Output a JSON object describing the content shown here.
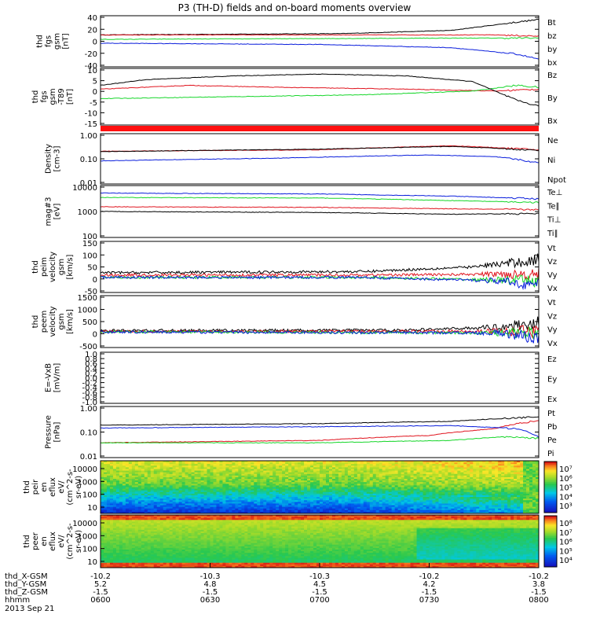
{
  "title": "P3 (TH-D) fields and on-board moments overview",
  "colors": {
    "black": "#000000",
    "red": "#e0141e",
    "green": "#16d62a",
    "blue": "#0a1edc"
  },
  "chart_data": [
    {
      "type": "line",
      "id": "fgs_gsm",
      "ylabel": [
        "thd",
        "fgs",
        "gsm",
        "[nT]"
      ],
      "ylim": [
        -40,
        40
      ],
      "yticks": [
        "40",
        "20",
        "0",
        "-20",
        "-40"
      ],
      "series": [
        {
          "name": "Bt",
          "color": "black",
          "shape": [
            [
              0,
              10
            ],
            [
              0.55,
              12
            ],
            [
              0.8,
              17
            ],
            [
              0.95,
              30
            ],
            [
              1,
              34
            ]
          ]
        },
        {
          "name": "bz",
          "color": "red",
          "shape": [
            [
              0,
              10
            ],
            [
              0.6,
              10
            ],
            [
              0.9,
              10
            ],
            [
              1,
              8
            ]
          ]
        },
        {
          "name": "by",
          "color": "green",
          "shape": [
            [
              0,
              3
            ],
            [
              0.4,
              4
            ],
            [
              0.8,
              5
            ],
            [
              1,
              5
            ]
          ]
        },
        {
          "name": "bx",
          "color": "blue",
          "shape": [
            [
              0,
              -3
            ],
            [
              0.5,
              -5
            ],
            [
              0.8,
              -10
            ],
            [
              0.95,
              -20
            ],
            [
              1,
              -28
            ]
          ]
        }
      ]
    },
    {
      "type": "line",
      "id": "fgs_gsm_t89",
      "ylabel": [
        "thd",
        "fgs",
        "gsm",
        "-T89",
        "[nT]"
      ],
      "ylim": [
        -18,
        12
      ],
      "yticks": [
        "10",
        "5",
        "0",
        "-5",
        "-10",
        "-15"
      ],
      "series": [
        {
          "name": "Bz",
          "color": "red",
          "shape": [
            [
              0,
              1
            ],
            [
              0.2,
              3
            ],
            [
              0.4,
              2
            ],
            [
              0.7,
              1
            ],
            [
              0.9,
              0
            ],
            [
              1,
              1
            ]
          ]
        },
        {
          "name": "By",
          "color": "green",
          "shape": [
            [
              0,
              -4
            ],
            [
              0.3,
              -3
            ],
            [
              0.6,
              -2
            ],
            [
              0.85,
              0
            ],
            [
              0.95,
              3
            ],
            [
              1,
              2
            ]
          ]
        },
        {
          "name": "Bx",
          "color": "black",
          "shape": [
            [
              0,
              3
            ],
            [
              0.1,
              6
            ],
            [
              0.3,
              8
            ],
            [
              0.5,
              9
            ],
            [
              0.7,
              8
            ],
            [
              0.85,
              5
            ],
            [
              0.95,
              -5
            ],
            [
              1,
              -8
            ]
          ]
        }
      ]
    },
    {
      "type": "line",
      "id": "density",
      "ylabel": [
        "Density",
        "[cm-3]"
      ],
      "log": true,
      "ylim": [
        0.01,
        1.5
      ],
      "yticks": [
        "1.00",
        "0.10",
        "0.01"
      ],
      "series": [
        {
          "name": "Ne",
          "color": "red",
          "shape": [
            [
              0,
              0.26
            ],
            [
              0.5,
              0.3
            ],
            [
              0.8,
              0.45
            ],
            [
              1,
              0.3
            ]
          ]
        },
        {
          "name": "Ni",
          "color": "black",
          "shape": [
            [
              0,
              0.25
            ],
            [
              0.5,
              0.32
            ],
            [
              0.8,
              0.42
            ],
            [
              1,
              0.28
            ]
          ]
        },
        {
          "name": "Npot",
          "color": "blue",
          "shape": [
            [
              0,
              0.1
            ],
            [
              0.4,
              0.13
            ],
            [
              0.75,
              0.18
            ],
            [
              0.9,
              0.15
            ],
            [
              1,
              0.08
            ]
          ]
        }
      ]
    },
    {
      "type": "line",
      "id": "temperature",
      "ylabel": [
        "mag#3",
        "[eV]"
      ],
      "log": true,
      "ylim": [
        100,
        12000
      ],
      "yticks": [
        "10000",
        "1000",
        "100"
      ],
      "series": [
        {
          "name": "Te⊥",
          "color": "red",
          "shape": [
            [
              0,
              1700
            ],
            [
              0.5,
              1600
            ],
            [
              0.8,
              1400
            ],
            [
              1,
              1300
            ]
          ]
        },
        {
          "name": "Te∥",
          "color": "black",
          "shape": [
            [
              0,
              1100
            ],
            [
              0.5,
              1000
            ],
            [
              0.8,
              850
            ],
            [
              1,
              900
            ]
          ]
        },
        {
          "name": "Ti⊥",
          "color": "blue",
          "shape": [
            [
              0,
              6000
            ],
            [
              0.5,
              5500
            ],
            [
              0.8,
              4500
            ],
            [
              1,
              3500
            ]
          ]
        },
        {
          "name": "Ti∥",
          "color": "green",
          "shape": [
            [
              0,
              4000
            ],
            [
              0.5,
              3800
            ],
            [
              0.8,
              3000
            ],
            [
              1,
              2500
            ]
          ]
        }
      ]
    },
    {
      "type": "line",
      "id": "peim_velocity",
      "ylabel": [
        "thd",
        "peim",
        "velocity",
        "gsm",
        "[km/s]"
      ],
      "ylim": [
        -60,
        160
      ],
      "yticks": [
        "150",
        "100",
        "50",
        "0",
        "-50"
      ],
      "series": [
        {
          "name": "Vt",
          "color": "black",
          "shape": [
            [
              0,
              25
            ],
            [
              0.6,
              30
            ],
            [
              0.85,
              50
            ],
            [
              1,
              80
            ]
          ]
        },
        {
          "name": "Vz",
          "color": "red",
          "shape": [
            [
              0,
              15
            ],
            [
              0.6,
              15
            ],
            [
              1,
              20
            ]
          ]
        },
        {
          "name": "Vy",
          "color": "green",
          "shape": [
            [
              0,
              5
            ],
            [
              0.6,
              5
            ],
            [
              1,
              -10
            ]
          ]
        },
        {
          "name": "Vx",
          "color": "blue",
          "shape": [
            [
              0,
              5
            ],
            [
              0.6,
              5
            ],
            [
              0.9,
              -10
            ],
            [
              1,
              -30
            ]
          ]
        }
      ]
    },
    {
      "type": "line",
      "id": "peem_velocity",
      "ylabel": [
        "thd",
        "peem",
        "velocity",
        "gsm",
        "[km/s]"
      ],
      "ylim": [
        -700,
        1600
      ],
      "yticks": [
        "1500",
        "1000",
        "500",
        "0",
        "-500"
      ],
      "series": [
        {
          "name": "Vt",
          "color": "black",
          "shape": [
            [
              0,
              50
            ],
            [
              0.7,
              70
            ],
            [
              0.9,
              200
            ],
            [
              1,
              400
            ]
          ]
        },
        {
          "name": "Vz",
          "color": "red",
          "shape": [
            [
              0,
              10
            ],
            [
              1,
              30
            ]
          ]
        },
        {
          "name": "Vy",
          "color": "green",
          "shape": [
            [
              0,
              0
            ],
            [
              1,
              -60
            ]
          ]
        },
        {
          "name": "Vx",
          "color": "blue",
          "shape": [
            [
              0,
              -10
            ],
            [
              0.9,
              -50
            ],
            [
              1,
              -250
            ]
          ]
        }
      ]
    },
    {
      "type": "line",
      "id": "e_vxb",
      "ylabel": [
        "E=-VxB",
        "[mV/m]"
      ],
      "ylim": [
        -1,
        1
      ],
      "yticks": [
        "1.0",
        "0.8",
        "0.6",
        "0.4",
        "0.2",
        "0.0",
        "-0.2",
        "-0.4",
        "-0.6",
        "-0.8",
        "-1.0"
      ],
      "series": [
        {
          "name": "Ez",
          "color": "red",
          "shape": []
        },
        {
          "name": "Ey",
          "color": "green",
          "shape": []
        },
        {
          "name": "Ex",
          "color": "blue",
          "shape": []
        }
      ]
    },
    {
      "type": "line",
      "id": "pressure",
      "ylabel": [
        "Pressure",
        "[nPa]"
      ],
      "log": true,
      "ylim": [
        0.01,
        1.2
      ],
      "yticks": [
        "1.00",
        "0.10",
        "0.01"
      ],
      "series": [
        {
          "name": "Pt",
          "color": "black",
          "shape": [
            [
              0,
              0.21
            ],
            [
              0.5,
              0.24
            ],
            [
              0.8,
              0.3
            ],
            [
              1,
              0.45
            ]
          ]
        },
        {
          "name": "Pb",
          "color": "red",
          "shape": [
            [
              0,
              0.04
            ],
            [
              0.5,
              0.05
            ],
            [
              0.75,
              0.08
            ],
            [
              0.9,
              0.15
            ],
            [
              1,
              0.32
            ]
          ]
        },
        {
          "name": "Pe",
          "color": "green",
          "shape": [
            [
              0,
              0.04
            ],
            [
              0.5,
              0.04
            ],
            [
              0.8,
              0.05
            ],
            [
              0.92,
              0.07
            ],
            [
              1,
              0.06
            ]
          ]
        },
        {
          "name": "Pi",
          "color": "blue",
          "shape": [
            [
              0,
              0.16
            ],
            [
              0.5,
              0.18
            ],
            [
              0.8,
              0.2
            ],
            [
              0.95,
              0.15
            ],
            [
              1,
              0.07
            ]
          ]
        }
      ]
    },
    {
      "type": "heatmap",
      "id": "peir_en_eflux",
      "ylabel": [
        "thd",
        "peir",
        "en",
        "eflux",
        "eV/",
        "(cm^2-s-",
        "sr-eV)"
      ],
      "yticks": [
        "10000",
        "1000",
        "100",
        "10"
      ],
      "colorbar_ticks": [
        "10⁷",
        "10⁶",
        "10⁵",
        "10⁴",
        "10³"
      ],
      "profile": "ion"
    },
    {
      "type": "heatmap",
      "id": "peer_en_eflux",
      "ylabel": [
        "thd",
        "peer",
        "en",
        "eflux",
        "eV/",
        "(cm^2-s-",
        "sr-eV)"
      ],
      "yticks": [
        "10000",
        "1000",
        "100",
        "10"
      ],
      "colorbar_ticks": [
        "10⁸",
        "10⁷",
        "10⁶",
        "10⁵",
        "10⁴"
      ],
      "profile": "electron"
    }
  ],
  "xaxis": {
    "row_labels": [
      "thd_X-GSM",
      "thd_Y-GSM",
      "thd_Z-GSM",
      "hhmm",
      "2013 Sep 21"
    ],
    "ticks": [
      {
        "x": "-10.2",
        "y": "5.2",
        "z": "-1.5",
        "t": "0600"
      },
      {
        "x": "-10.3",
        "y": "4.8",
        "z": "-1.5",
        "t": "0630"
      },
      {
        "x": "-10.3",
        "y": "4.5",
        "z": "-1.5",
        "t": "0700"
      },
      {
        "x": "-10.2",
        "y": "4.2",
        "z": "-1.5",
        "t": "0730"
      },
      {
        "x": "-10.2",
        "y": "3.8",
        "z": "-1.5",
        "t": "0800"
      }
    ]
  }
}
